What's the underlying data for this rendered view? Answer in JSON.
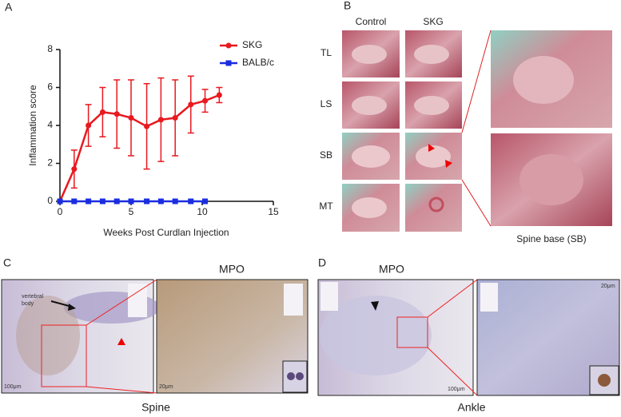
{
  "panel_labels": [
    "A",
    "B",
    "C",
    "D"
  ],
  "chart_data": {
    "type": "line",
    "x_label": "Weeks Post Curdlan Injection",
    "y_label": "Inflammation score",
    "xlim": [
      0,
      15
    ],
    "ylim": [
      0,
      8
    ],
    "xticks": [
      0,
      5,
      10,
      15
    ],
    "yticks": [
      0,
      2,
      4,
      6,
      8
    ],
    "legend": "upper right",
    "series": [
      {
        "name": "SKG",
        "color": "#e8191f",
        "marker": "circle",
        "x": [
          0,
          1,
          2,
          3,
          4,
          5,
          6.1,
          7.1,
          8.1,
          9.2,
          10.2,
          11.2
        ],
        "values": [
          0,
          1.7,
          4.0,
          4.7,
          4.6,
          4.4,
          3.95,
          4.3,
          4.4,
          5.1,
          5.3,
          5.6
        ],
        "errors": [
          0,
          1.0,
          1.1,
          1.3,
          1.8,
          2.0,
          2.25,
          2.2,
          2.0,
          1.5,
          0.6,
          0.4
        ]
      },
      {
        "name": "BALB/c",
        "color": "#1a2de0",
        "marker": "square",
        "x": [
          0,
          1,
          2,
          3,
          4,
          5,
          6.1,
          7.1,
          8.1,
          9.2,
          10.2
        ],
        "values": [
          0,
          0,
          0,
          0,
          0,
          0,
          0,
          0,
          0,
          0,
          0
        ]
      }
    ]
  },
  "panel_b": {
    "columns": [
      "Control",
      "SKG"
    ],
    "rows": [
      "TL",
      "LS",
      "SB",
      "MT"
    ],
    "caption": "Spine base (SB)"
  },
  "panel_c": {
    "title": "MPO",
    "caption": "Spine",
    "annotation": [
      "vertebral",
      "body"
    ],
    "scale_bars": [
      "100μm",
      "20μm"
    ]
  },
  "panel_d": {
    "title": "MPO",
    "caption": "Ankle",
    "scale_bars": [
      "100μm",
      "20μm"
    ]
  }
}
